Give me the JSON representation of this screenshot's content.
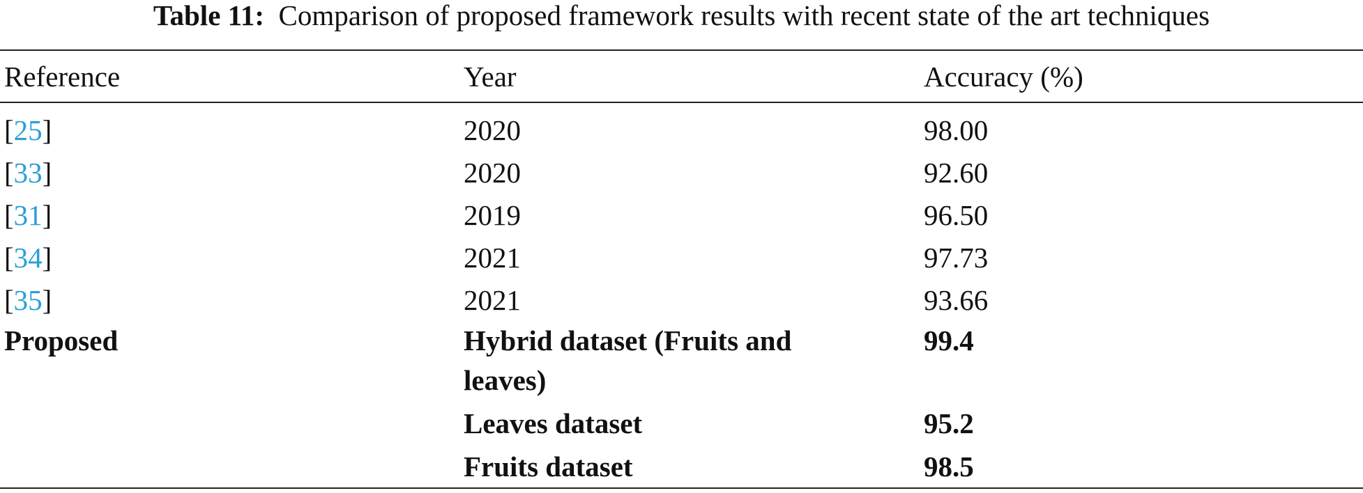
{
  "table": {
    "caption": {
      "label": "Table 11:",
      "text": "Comparison of proposed framework results with recent state of the art techniques"
    },
    "header": [
      "Reference",
      "Year",
      "Accuracy (%)"
    ],
    "rows": [
      {
        "reference": [
          "[",
          "25",
          "]"
        ],
        "year": "2020",
        "accuracy": "98.00"
      },
      {
        "reference": [
          "[",
          "33",
          "]"
        ],
        "year": "2020",
        "accuracy": "92.60"
      },
      {
        "reference": [
          "[",
          "31",
          "]"
        ],
        "year": "2019",
        "accuracy": "96.50"
      },
      {
        "reference": [
          "[",
          "34",
          "]"
        ],
        "year": "2021",
        "accuracy": "97.73"
      },
      {
        "reference": [
          "[",
          "35",
          "]"
        ],
        "year": "2021",
        "accuracy": "93.66"
      }
    ],
    "proposed": {
      "label": "Proposed",
      "rows": [
        {
          "dataset": "Hybrid dataset (Fruits and leaves)",
          "accuracy": "99.4"
        },
        {
          "dataset": "Leaves dataset",
          "accuracy": "95.2"
        },
        {
          "dataset": "Fruits dataset",
          "accuracy": "98.5"
        }
      ]
    }
  }
}
